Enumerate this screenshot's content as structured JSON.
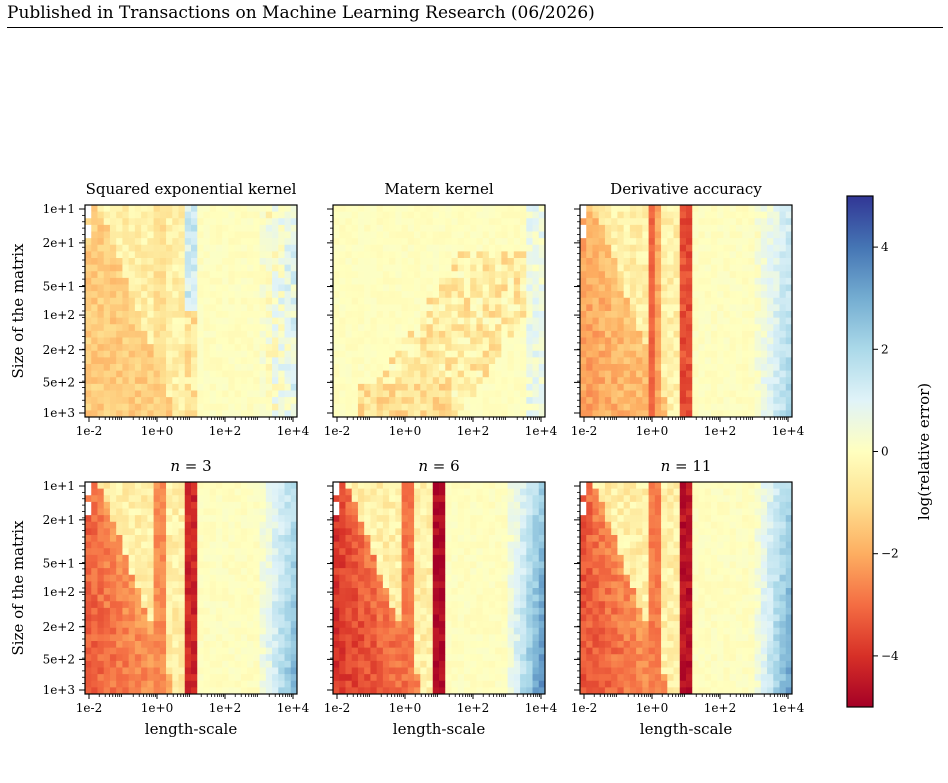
{
  "header": {
    "text": "Published in Transactions on Machine Learning Research (06/2026)"
  },
  "chart_data": {
    "type": "heatmap",
    "x_label": "length-scale",
    "y_label": "Size of the matrix",
    "x_scale": "log",
    "x_range": [
      0.01,
      10000
    ],
    "x_ticks": [
      "1e-2",
      "1e+0",
      "1e+2",
      "1e+4"
    ],
    "y_scale": "log",
    "y_range": [
      10,
      1000
    ],
    "y_ticks": [
      "1e+1",
      "2e+1",
      "5e+1",
      "1e+2",
      "2e+2",
      "5e+2",
      "1e+3"
    ],
    "colorbar": {
      "label": "log(relative error)",
      "range": [
        -5,
        5
      ],
      "ticks": [
        "4",
        "2",
        "0",
        "−2",
        "−4"
      ],
      "colormap": "RdYlBu",
      "stops": [
        "#a50026",
        "#d73027",
        "#f46d43",
        "#fdae61",
        "#fee090",
        "#ffffbf",
        "#e0f3f8",
        "#abd9e9",
        "#74add1",
        "#4575b4",
        "#313695"
      ]
    },
    "panels": [
      {
        "title": "Squared exponential kernel",
        "pattern": "se"
      },
      {
        "title": "Matern kernel",
        "pattern": "matern"
      },
      {
        "title": "Derivative accuracy",
        "pattern": "deriv"
      },
      {
        "title": "n = 3",
        "title_var": "n",
        "title_value": "3",
        "pattern": "n3"
      },
      {
        "title": "n = 6",
        "title_var": "n",
        "title_value": "6",
        "pattern": "n6"
      },
      {
        "title": "n = 11",
        "title_var": "n",
        "title_value": "11",
        "pattern": "n11"
      }
    ]
  }
}
